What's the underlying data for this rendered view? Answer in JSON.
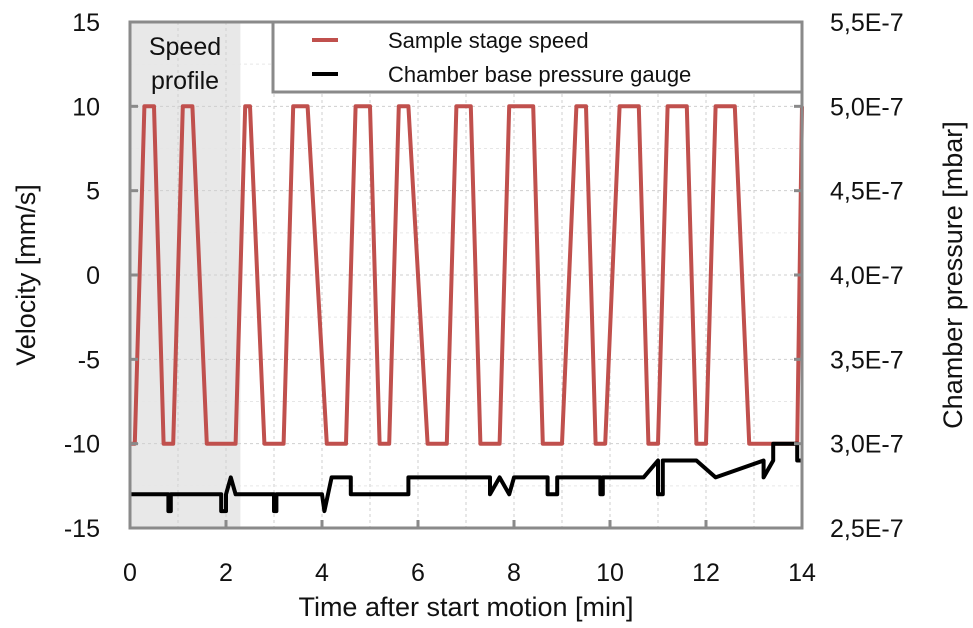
{
  "chart_data": {
    "type": "line",
    "title": "",
    "xlabel": "Time after start motion [min]",
    "ylabel": "Velocity [mm/s]",
    "y2label": "Chamber pressure [mbar]",
    "xlim": [
      0,
      14
    ],
    "ylim": [
      -15,
      15
    ],
    "y2lim": [
      2.5e-07,
      5.5e-07
    ],
    "xticks": [
      "0",
      "2",
      "4",
      "6",
      "8",
      "10",
      "12",
      "14"
    ],
    "xtick_values": [
      0,
      2,
      4,
      6,
      8,
      10,
      12,
      14
    ],
    "yticks": [
      "15",
      "10",
      "5",
      "0",
      "-5",
      "-10",
      "-15"
    ],
    "ytick_values": [
      15,
      10,
      5,
      0,
      -5,
      -10,
      -15
    ],
    "y2ticks": [
      "5,5E-7",
      "5,0E-7",
      "4,5E-7",
      "4,0E-7",
      "3,5E-7",
      "3,0E-7",
      "2,5E-7"
    ],
    "y2tick_values": [
      5.5e-07,
      5e-07,
      4.5e-07,
      4e-07,
      3.5e-07,
      3e-07,
      2.5e-07
    ],
    "grid": true,
    "legend_position": "top-right",
    "annotation": {
      "lines": [
        "Speed",
        "profile"
      ],
      "shaded_x_range": [
        0,
        2.3
      ],
      "shade_color": "#e8e8e8"
    },
    "series": [
      {
        "name": "Sample stage speed",
        "axis": "left",
        "color": "#c0504d",
        "x": [
          0,
          0.1,
          0.3,
          0.5,
          0.7,
          0.9,
          1.1,
          1.3,
          1.6,
          1.8,
          2.0,
          2.2,
          2.4,
          2.5,
          2.8,
          3.0,
          3.2,
          3.4,
          3.7,
          4.1,
          4.3,
          4.5,
          4.7,
          5.0,
          5.2,
          5.4,
          5.6,
          5.8,
          6.2,
          6.4,
          6.6,
          6.8,
          7.1,
          7.3,
          7.5,
          7.7,
          7.9,
          8.4,
          8.6,
          8.8,
          9.0,
          9.3,
          9.5,
          9.7,
          9.9,
          10.2,
          10.6,
          10.8,
          11.0,
          11.2,
          11.6,
          11.8,
          12.0,
          12.2,
          12.6,
          12.9,
          13.1,
          13.3,
          13.7,
          13.9,
          14.0
        ],
        "values": [
          -10,
          -10,
          10,
          10,
          -10,
          -10,
          10,
          10,
          -10,
          -10,
          -10,
          -10,
          10,
          10,
          -10,
          -10,
          -10,
          10,
          10,
          -10,
          -10,
          -10,
          10,
          10,
          -10,
          -10,
          10,
          10,
          -10,
          -10,
          -10,
          10,
          10,
          -10,
          -10,
          -10,
          10,
          10,
          -10,
          -10,
          -10,
          10,
          10,
          -10,
          -10,
          10,
          10,
          -10,
          -10,
          10,
          10,
          -10,
          -10,
          10,
          10,
          -10,
          -10,
          -10,
          -10,
          -10,
          10
        ]
      },
      {
        "name": "Chamber base pressure gauge",
        "axis": "right",
        "color": "#000000",
        "x": [
          0,
          0.8,
          0.8,
          0.85,
          0.85,
          1.9,
          1.9,
          2.0,
          2.0,
          2.1,
          2.2,
          2.3,
          3.0,
          3.0,
          3.05,
          3.05,
          4.0,
          4.05,
          4.2,
          4.6,
          4.6,
          5.8,
          5.8,
          6.2,
          6.2,
          6.5,
          6.8,
          6.8,
          7.5,
          7.5,
          7.7,
          7.9,
          8.0,
          8.7,
          8.7,
          8.9,
          8.9,
          9.8,
          9.8,
          9.85,
          9.85,
          10.7,
          11.0,
          11.0,
          11.1,
          11.1,
          11.8,
          12.2,
          13.2,
          13.2,
          13.4,
          13.4,
          13.9,
          13.9,
          14.0
        ],
        "values": [
          2.7e-07,
          2.7e-07,
          2.6e-07,
          2.6e-07,
          2.7e-07,
          2.7e-07,
          2.6e-07,
          2.6e-07,
          2.7e-07,
          2.8e-07,
          2.7e-07,
          2.7e-07,
          2.7e-07,
          2.6e-07,
          2.6e-07,
          2.7e-07,
          2.7e-07,
          2.6e-07,
          2.8e-07,
          2.8e-07,
          2.7e-07,
          2.7e-07,
          2.8e-07,
          2.8e-07,
          2.8e-07,
          2.8e-07,
          2.8e-07,
          2.8e-07,
          2.8e-07,
          2.7e-07,
          2.8e-07,
          2.7e-07,
          2.8e-07,
          2.8e-07,
          2.7e-07,
          2.7e-07,
          2.8e-07,
          2.8e-07,
          2.7e-07,
          2.7e-07,
          2.8e-07,
          2.8e-07,
          2.9e-07,
          2.7e-07,
          2.7e-07,
          2.9e-07,
          2.9e-07,
          2.8e-07,
          2.9e-07,
          2.8e-07,
          2.9e-07,
          3e-07,
          3e-07,
          2.9e-07,
          2.9e-07
        ]
      }
    ]
  }
}
